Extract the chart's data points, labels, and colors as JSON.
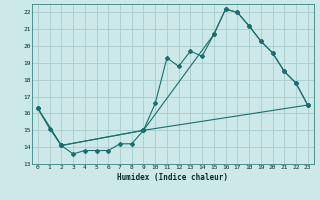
{
  "xlabel": "Humidex (Indice chaleur)",
  "ylabel": "",
  "bg_color": "#cce8e8",
  "grid_color": "#aacccc",
  "line_color": "#1a6e6e",
  "xlim": [
    -0.5,
    23.5
  ],
  "ylim": [
    13,
    22.5
  ],
  "xticks": [
    0,
    1,
    2,
    3,
    4,
    5,
    6,
    7,
    8,
    9,
    10,
    11,
    12,
    13,
    14,
    15,
    16,
    17,
    18,
    19,
    20,
    21,
    22,
    23
  ],
  "yticks": [
    13,
    14,
    15,
    16,
    17,
    18,
    19,
    20,
    21,
    22
  ],
  "curve1_x": [
    0,
    1,
    2,
    3,
    4,
    5,
    6,
    7,
    8,
    9,
    10,
    11,
    12,
    13,
    14,
    15,
    16,
    17,
    18,
    19,
    20,
    21,
    22,
    23
  ],
  "curve1_y": [
    16.3,
    15.1,
    14.1,
    13.6,
    13.8,
    13.8,
    13.8,
    14.2,
    14.2,
    15.0,
    16.6,
    19.3,
    18.8,
    19.7,
    19.4,
    20.7,
    22.2,
    22.0,
    21.2,
    20.3,
    19.6,
    18.5,
    17.8,
    16.5
  ],
  "curve2_x": [
    0,
    2,
    9,
    15,
    16,
    17,
    18,
    19,
    20,
    21,
    22,
    23
  ],
  "curve2_y": [
    16.3,
    14.1,
    15.0,
    20.7,
    22.2,
    22.0,
    21.2,
    20.3,
    19.6,
    18.5,
    17.8,
    16.5
  ],
  "curve3_x": [
    0,
    2,
    9,
    23
  ],
  "curve3_y": [
    16.3,
    14.1,
    15.0,
    16.5
  ]
}
